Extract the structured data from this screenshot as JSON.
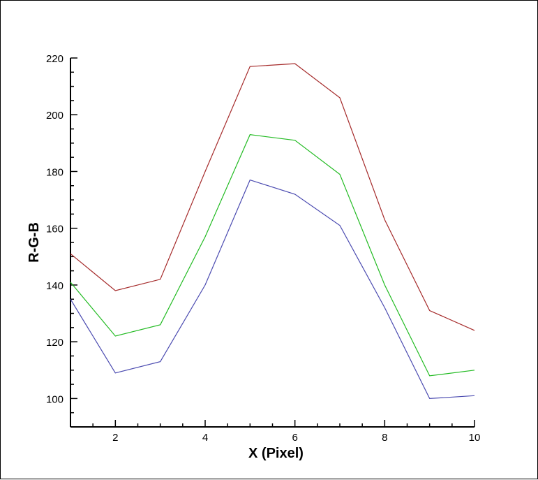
{
  "chart_data": {
    "type": "line",
    "title": "",
    "xlabel": "X (Pixel)",
    "ylabel": "R-G-B",
    "xlim": [
      1,
      10
    ],
    "ylim": [
      90,
      220
    ],
    "x_ticks": [
      2,
      4,
      6,
      8,
      10
    ],
    "y_ticks": [
      100,
      120,
      140,
      160,
      180,
      200,
      220
    ],
    "grid": false,
    "legend": "none",
    "x": [
      1,
      2,
      3,
      4,
      5,
      6,
      7,
      8,
      9,
      10
    ],
    "series": [
      {
        "color": "#a52a2a",
        "values": [
          151,
          138,
          142,
          180,
          217,
          218,
          206,
          163,
          131,
          124
        ]
      },
      {
        "color": "#22bb22",
        "values": [
          141,
          122,
          126,
          157,
          193,
          191,
          179,
          140,
          108,
          110
        ]
      },
      {
        "color": "#4a4ab0",
        "values": [
          135,
          109,
          113,
          140,
          177,
          172,
          161,
          132,
          100,
          101
        ]
      }
    ]
  }
}
